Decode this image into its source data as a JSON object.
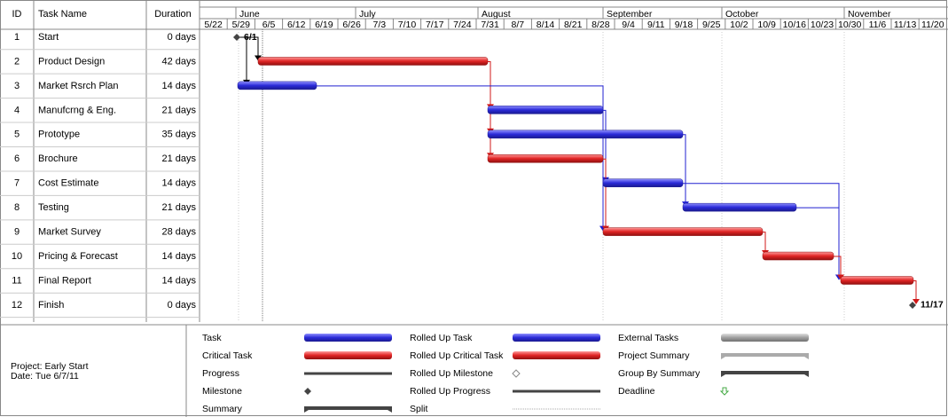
{
  "table": {
    "headers": [
      "ID",
      "Task Name",
      "Duration"
    ],
    "rows": [
      [
        "1",
        "Start",
        "0 days"
      ],
      [
        "2",
        "Product Design",
        "42 days"
      ],
      [
        "3",
        "Market Rsrch Plan",
        "14 days"
      ],
      [
        "4",
        "Manufcrng & Eng.",
        "21 days"
      ],
      [
        "5",
        "Prototype",
        "35 days"
      ],
      [
        "6",
        "Brochure",
        "21 days"
      ],
      [
        "7",
        "Cost Estimate",
        "14 days"
      ],
      [
        "8",
        "Testing",
        "21 days"
      ],
      [
        "9",
        "Market Survey",
        "28 days"
      ],
      [
        "10",
        "Pricing & Forecast",
        "14 days"
      ],
      [
        "11",
        "Final Report",
        "14 days"
      ],
      [
        "12",
        "Finish",
        "0 days"
      ]
    ]
  },
  "timeline": {
    "months": [
      "June",
      "July",
      "August",
      "September",
      "October",
      "November"
    ],
    "weeks": [
      "5/22",
      "5/29",
      "6/5",
      "6/12",
      "6/19",
      "6/26",
      "7/3",
      "7/10",
      "7/17",
      "7/24",
      "7/31",
      "8/7",
      "8/14",
      "8/21",
      "8/28",
      "9/4",
      "9/11",
      "9/18",
      "9/25",
      "10/2",
      "10/9",
      "10/16",
      "10/23",
      "10/30",
      "11/6",
      "11/13",
      "11/20"
    ]
  },
  "milestone_labels": [
    "6/1",
    "11/17"
  ],
  "legend": {
    "project": "Project: Early Start",
    "date": "Date: Tue 6/7/11",
    "items": [
      "Task",
      "Critical Task",
      "Progress",
      "Milestone",
      "Summary",
      "Rolled Up Task",
      "Rolled Up Critical Task",
      "Rolled Up Milestone",
      "Rolled Up Progress",
      "Split",
      "External Tasks",
      "Project Summary",
      "Group By Summary",
      "Deadline"
    ]
  }
}
